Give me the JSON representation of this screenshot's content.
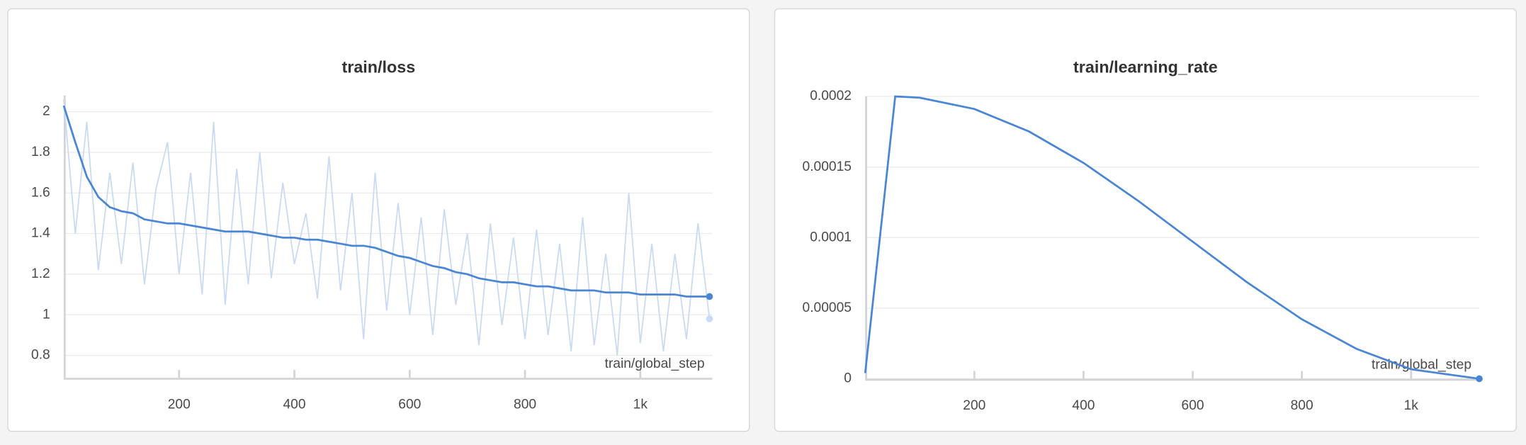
{
  "chart_data": [
    {
      "type": "line",
      "title": "train/loss",
      "x_label": "train/global_step",
      "x": [
        0,
        20,
        40,
        60,
        80,
        100,
        120,
        140,
        160,
        180,
        200,
        220,
        240,
        260,
        280,
        300,
        320,
        340,
        360,
        380,
        400,
        420,
        440,
        460,
        480,
        500,
        520,
        540,
        560,
        580,
        600,
        620,
        640,
        660,
        680,
        700,
        720,
        740,
        760,
        780,
        800,
        820,
        840,
        860,
        880,
        900,
        920,
        940,
        960,
        980,
        1000,
        1020,
        1040,
        1060,
        1080,
        1100,
        1120
      ],
      "series": [
        {
          "color": "#c9dbf2",
          "values": [
            2.06,
            1.4,
            1.95,
            1.22,
            1.7,
            1.25,
            1.75,
            1.15,
            1.62,
            1.85,
            1.2,
            1.7,
            1.1,
            1.95,
            1.05,
            1.72,
            1.15,
            1.8,
            1.18,
            1.65,
            1.25,
            1.5,
            1.08,
            1.78,
            1.12,
            1.6,
            0.88,
            1.7,
            1.02,
            1.55,
            1.0,
            1.48,
            0.9,
            1.52,
            1.05,
            1.4,
            0.85,
            1.45,
            0.95,
            1.38,
            0.88,
            1.42,
            0.9,
            1.35,
            0.82,
            1.48,
            0.85,
            1.3,
            0.8,
            1.6,
            0.86,
            1.35,
            0.82,
            1.3,
            0.88,
            1.45,
            0.98
          ]
        },
        {
          "color": "#4a86d4",
          "values": [
            2.03,
            1.85,
            1.68,
            1.58,
            1.53,
            1.51,
            1.5,
            1.47,
            1.46,
            1.45,
            1.45,
            1.44,
            1.43,
            1.42,
            1.41,
            1.41,
            1.41,
            1.4,
            1.39,
            1.38,
            1.38,
            1.37,
            1.37,
            1.36,
            1.35,
            1.34,
            1.34,
            1.33,
            1.31,
            1.29,
            1.28,
            1.26,
            1.24,
            1.23,
            1.21,
            1.2,
            1.18,
            1.17,
            1.16,
            1.16,
            1.15,
            1.14,
            1.14,
            1.13,
            1.12,
            1.12,
            1.12,
            1.11,
            1.11,
            1.11,
            1.1,
            1.1,
            1.1,
            1.1,
            1.09,
            1.09,
            1.09
          ]
        }
      ],
      "xlim": [
        0,
        1125
      ],
      "xticks": [
        200,
        400,
        600,
        800,
        {
          "value": 1000,
          "label": "1k"
        }
      ],
      "ylim": [
        0.69,
        2.08
      ],
      "yticks": [
        0.8,
        1,
        1.2,
        1.4,
        1.6,
        1.8,
        2
      ],
      "grid": true
    },
    {
      "type": "line",
      "title": "train/learning_rate",
      "x_label": "train/global_step",
      "x": [
        0,
        55,
        100,
        200,
        300,
        400,
        500,
        600,
        700,
        800,
        900,
        1000,
        1125
      ],
      "series": [
        {
          "color": "#4a86d4",
          "values": [
            4e-06,
            0.0002,
            0.0001991,
            0.0001911,
            0.0001752,
            0.0001529,
            0.0001261,
            9.71e-05,
            6.82e-05,
            4.21e-05,
            2.12e-05,
            6.7e-06,
            0
          ]
        }
      ],
      "xlim": [
        0,
        1125
      ],
      "xticks": [
        200,
        400,
        600,
        800,
        {
          "value": 1000,
          "label": "1k"
        }
      ],
      "ylim": [
        0,
        0.0002
      ],
      "yticks": [
        0,
        5e-05,
        0.0001,
        0.00015,
        0.0002
      ],
      "grid": true
    }
  ]
}
